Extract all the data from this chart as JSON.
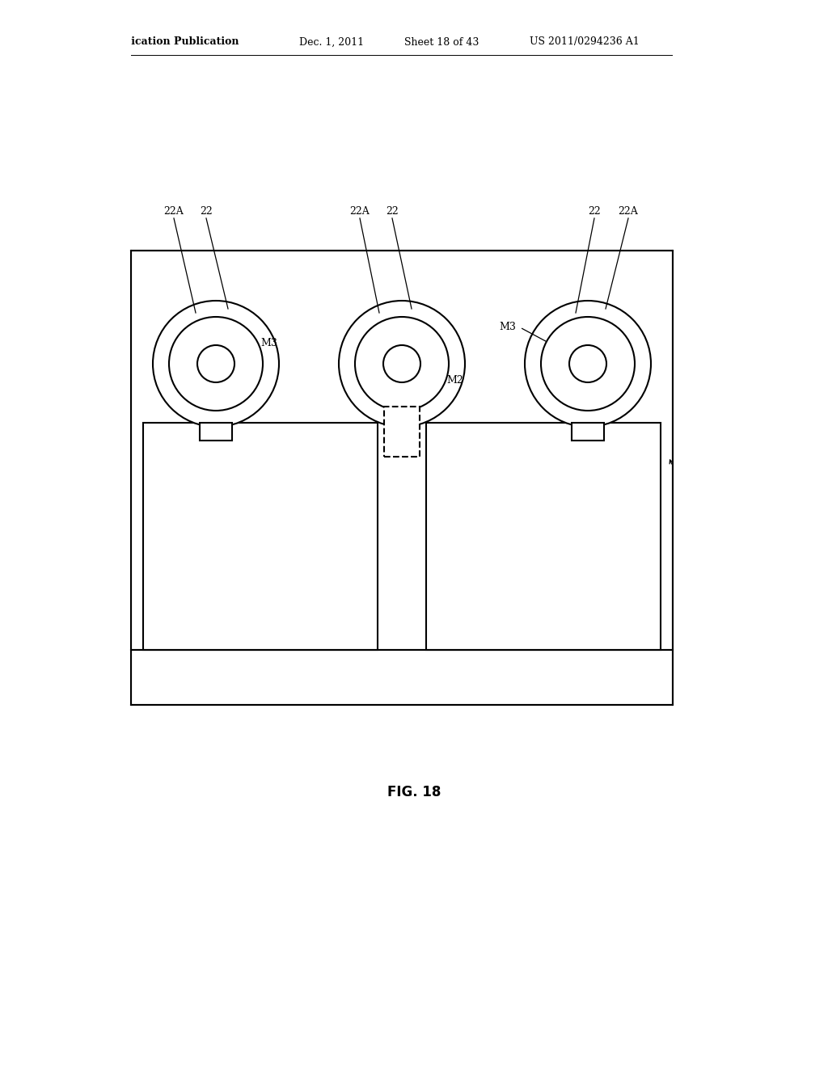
{
  "bg_color": "#ffffff",
  "line_color": "#000000",
  "header_text": "Patent Application Publication",
  "header_date": "Dec. 1, 2011",
  "header_sheet": "Sheet 18 of 43",
  "header_patent": "US 2011/0294236 A1",
  "figure_label": "FIG. 18",
  "fontsize_header": 9,
  "fontsize_labels": 9,
  "fontsize_fig": 12
}
